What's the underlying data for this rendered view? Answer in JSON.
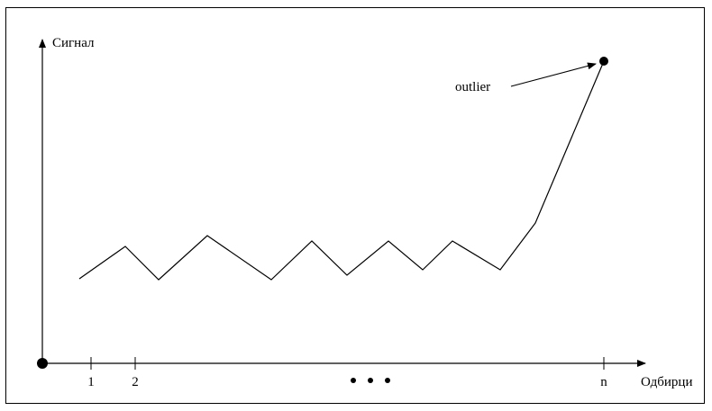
{
  "diagram": {
    "y_axis_label": "Сигнал",
    "x_axis_label": "Одбирци",
    "outlier_label": "outlier",
    "ticks": [
      {
        "label": "1"
      },
      {
        "label": "2"
      },
      {
        "label": "n"
      }
    ],
    "ellipsis_dots": 3,
    "signal_points": [
      [
        0.0,
        0.3
      ],
      [
        0.6,
        0.48
      ],
      [
        1.0,
        0.28
      ],
      [
        1.8,
        0.52
      ],
      [
        2.6,
        0.27
      ],
      [
        3.3,
        0.5
      ],
      [
        3.8,
        0.3
      ],
      [
        4.3,
        0.49
      ],
      [
        4.7,
        0.33
      ],
      [
        5.0,
        0.49
      ],
      [
        5.6,
        0.34
      ],
      [
        6.0,
        0.54
      ],
      [
        6.8,
        1.65
      ]
    ]
  }
}
